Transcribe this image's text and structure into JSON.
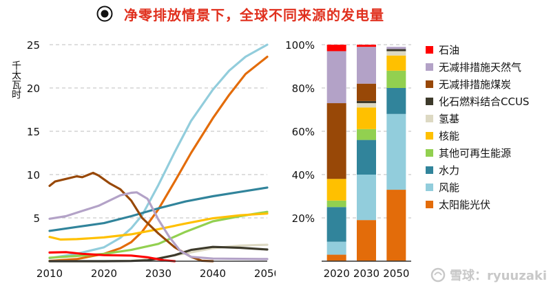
{
  "title": "净零排放情景下，全球不同来源的发电量",
  "watermark": "雪球：ryuuzaki",
  "chart_data": [
    {
      "type": "line",
      "ylabel": "千太瓦时",
      "xlabel": "",
      "xlim": [
        2010,
        2050
      ],
      "ylim": [
        0,
        25
      ],
      "xticks": [
        2010,
        2020,
        2030,
        2040,
        2050
      ],
      "yticks": [
        5,
        10,
        15,
        20,
        25
      ],
      "grid": "horizontal dashed",
      "series": [
        {
          "name": "太阳能光伏",
          "color": "#e36c0a",
          "x": [
            2010,
            2015,
            2020,
            2023,
            2025,
            2027,
            2030,
            2033,
            2036,
            2040,
            2043,
            2046,
            2050
          ],
          "values": [
            0.03,
            0.25,
            0.85,
            1.5,
            2.2,
            3.4,
            6.0,
            9.2,
            12.5,
            16.5,
            19.2,
            21.6,
            23.6
          ]
        },
        {
          "name": "风能",
          "color": "#92cddc",
          "x": [
            2010,
            2015,
            2020,
            2023,
            2025,
            2027,
            2030,
            2033,
            2036,
            2040,
            2043,
            2046,
            2050
          ],
          "values": [
            0.35,
            0.85,
            1.6,
            2.7,
            3.8,
            5.3,
            8.8,
            12.6,
            16.2,
            19.8,
            22.0,
            23.6,
            25.0
          ]
        },
        {
          "name": "水力",
          "color": "#31849b",
          "x": [
            2010,
            2015,
            2020,
            2025,
            2030,
            2035,
            2040,
            2045,
            2050
          ],
          "values": [
            3.5,
            3.95,
            4.4,
            5.2,
            6.1,
            6.9,
            7.5,
            8.0,
            8.5
          ]
        },
        {
          "name": "其他可再生能源",
          "color": "#92d050",
          "x": [
            2010,
            2015,
            2020,
            2025,
            2030,
            2035,
            2040,
            2045,
            2050
          ],
          "values": [
            0.4,
            0.6,
            0.85,
            1.3,
            2.0,
            3.4,
            4.6,
            5.2,
            5.7
          ]
        },
        {
          "name": "核能",
          "color": "#ffc000",
          "x": [
            2010,
            2012,
            2015,
            2020,
            2025,
            2030,
            2035,
            2040,
            2045,
            2050
          ],
          "values": [
            2.8,
            2.5,
            2.55,
            2.75,
            3.1,
            3.7,
            4.35,
            4.95,
            5.3,
            5.5
          ]
        },
        {
          "name": "氢基",
          "color": "#ddd9c3",
          "x": [
            2010,
            2020,
            2025,
            2030,
            2035,
            2040,
            2045,
            2050
          ],
          "values": [
            0,
            0,
            0.05,
            0.35,
            0.9,
            1.5,
            1.8,
            1.9
          ]
        },
        {
          "name": "化石燃料结合CCUS",
          "color": "#3d3a2b",
          "x": [
            2010,
            2020,
            2025,
            2028,
            2030,
            2033,
            2036,
            2040,
            2045,
            2050
          ],
          "values": [
            0,
            0,
            0.02,
            0.1,
            0.3,
            0.7,
            1.3,
            1.65,
            1.55,
            1.35
          ]
        },
        {
          "name": "无减排措施煤炭",
          "color": "#984807",
          "x": [
            2010,
            2011,
            2013,
            2015,
            2016,
            2018,
            2019,
            2021,
            2023,
            2025,
            2027,
            2030,
            2033,
            2036,
            2038,
            2040
          ],
          "values": [
            8.7,
            9.2,
            9.5,
            9.8,
            9.7,
            10.2,
            9.9,
            9.0,
            8.3,
            7.0,
            5.0,
            3.2,
            1.6,
            0.5,
            0.05,
            0
          ]
        },
        {
          "name": "无减排措施天然气",
          "color": "#b3a2c7",
          "x": [
            2010,
            2013,
            2016,
            2019,
            2021,
            2023,
            2025,
            2026,
            2028,
            2030,
            2032,
            2034,
            2036,
            2040,
            2050
          ],
          "values": [
            4.9,
            5.2,
            5.8,
            6.4,
            7.0,
            7.6,
            7.9,
            7.95,
            7.2,
            4.8,
            2.8,
            1.2,
            0.5,
            0.3,
            0.25
          ]
        },
        {
          "name": "石油",
          "color": "#ff0000",
          "x": [
            2010,
            2013,
            2016,
            2020,
            2025,
            2028,
            2031,
            2033
          ],
          "values": [
            1.0,
            1.05,
            0.85,
            0.7,
            0.65,
            0.45,
            0.1,
            0
          ]
        }
      ]
    },
    {
      "type": "bar",
      "stacked": true,
      "categories": [
        "2020",
        "2030",
        "2050"
      ],
      "ylim": [
        0,
        100
      ],
      "yticks": [
        "20%",
        "40%",
        "60%",
        "80%",
        "100%"
      ],
      "ytick_values": [
        20,
        40,
        60,
        80,
        100
      ],
      "grid": "horizontal dashed",
      "series": [
        {
          "name": "太阳能光伏",
          "color": "#e36c0a",
          "values": [
            3,
            19,
            33
          ]
        },
        {
          "name": "风能",
          "color": "#92cddc",
          "values": [
            6,
            21,
            35
          ]
        },
        {
          "name": "水力",
          "color": "#31849b",
          "values": [
            16,
            16,
            12
          ]
        },
        {
          "name": "其他可再生能源",
          "color": "#92d050",
          "values": [
            3,
            5,
            8
          ]
        },
        {
          "name": "核能",
          "color": "#ffc000",
          "values": [
            10,
            10,
            7
          ]
        },
        {
          "name": "氢基",
          "color": "#ddd9c3",
          "values": [
            0,
            2,
            2
          ]
        },
        {
          "name": "化石燃料结合CCUS",
          "color": "#3d3a2b",
          "values": [
            0,
            1,
            1
          ]
        },
        {
          "name": "无减排措施煤炭",
          "color": "#984807",
          "values": [
            35,
            8,
            0
          ]
        },
        {
          "name": "无减排措施天然气",
          "color": "#b3a2c7",
          "values": [
            24,
            17,
            1
          ]
        },
        {
          "name": "石油",
          "color": "#ff0000",
          "values": [
            3,
            1,
            0
          ]
        }
      ]
    }
  ],
  "legend": [
    {
      "label": "石油",
      "color": "#ff0000"
    },
    {
      "label": "无减排措施天然气",
      "color": "#b3a2c7"
    },
    {
      "label": "无减排措施煤炭",
      "color": "#984807"
    },
    {
      "label": "化石燃料结合CCUS",
      "color": "#3d3a2b"
    },
    {
      "label": "氢基",
      "color": "#ddd9c3"
    },
    {
      "label": "核能",
      "color": "#ffc000"
    },
    {
      "label": "其他可再生能源",
      "color": "#92d050"
    },
    {
      "label": "水力",
      "color": "#31849b"
    },
    {
      "label": "风能",
      "color": "#92cddc"
    },
    {
      "label": "太阳能光伏",
      "color": "#e36c0a"
    }
  ]
}
